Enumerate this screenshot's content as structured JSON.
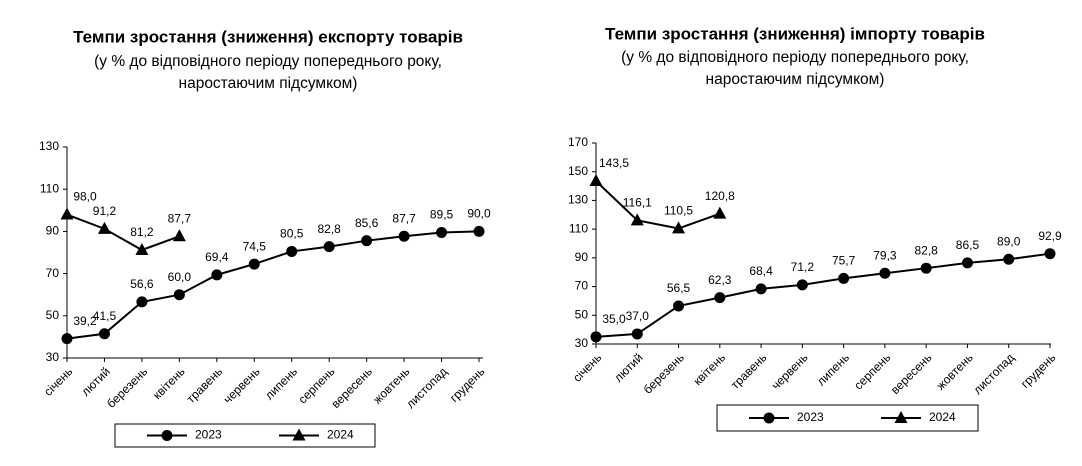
{
  "chart_data": [
    {
      "type": "line",
      "title": "Темпи зростання (зниження) експорту товарів",
      "subtitle": [
        "(у % до відповідного періоду попереднього року,",
        "наростаючим підсумком)"
      ],
      "categories": [
        "січень",
        "лютий",
        "березень",
        "квітень",
        "травень",
        "червень",
        "липень",
        "серпень",
        "вересень",
        "жовтень",
        "листопад",
        "грудень"
      ],
      "series": [
        {
          "name": "2023",
          "color": "#000000",
          "marker": "circle",
          "values": [
            39.2,
            41.5,
            56.6,
            60.0,
            69.4,
            74.5,
            80.5,
            82.8,
            85.6,
            87.7,
            89.5,
            90.0
          ],
          "value_labels": [
            "39,2",
            "41,5",
            "56,6",
            "60,0",
            "69,4",
            "74,5",
            "80,5",
            "82,8",
            "85,6",
            "87,7",
            "89,5",
            "90,0"
          ]
        },
        {
          "name": "2024",
          "color": "#000000",
          "marker": "triangle",
          "values": [
            98.0,
            91.2,
            81.2,
            87.7,
            null,
            null,
            null,
            null,
            null,
            null,
            null,
            null
          ],
          "value_labels": [
            "98,0",
            "91,2",
            "81,2",
            "87,7",
            null,
            null,
            null,
            null,
            null,
            null,
            null,
            null
          ]
        }
      ],
      "ylim": [
        30,
        130
      ],
      "yticks": [
        30,
        50,
        70,
        90,
        110,
        130
      ],
      "legend": "bottom"
    },
    {
      "type": "line",
      "title": "Темпи зростання (зниження) імпорту товарів",
      "subtitle": [
        "(у % до відповідного періоду попереднього року,",
        "наростаючим підсумком)"
      ],
      "categories": [
        "січень",
        "лютий",
        "березень",
        "квітень",
        "травень",
        "червень",
        "липень",
        "серпень",
        "вересень",
        "жовтень",
        "листопад",
        "грудень"
      ],
      "series": [
        {
          "name": "2023",
          "color": "#000000",
          "marker": "circle",
          "values": [
            35.0,
            37.0,
            56.5,
            62.3,
            68.4,
            71.2,
            75.7,
            79.3,
            82.8,
            86.5,
            89.0,
            92.9
          ],
          "value_labels": [
            "35,0",
            "37,0",
            "56,5",
            "62,3",
            "68,4",
            "71,2",
            "75,7",
            "79,3",
            "82,8",
            "86,5",
            "89,0",
            "92,9"
          ]
        },
        {
          "name": "2024",
          "color": "#000000",
          "marker": "triangle",
          "values": [
            143.5,
            116.1,
            110.5,
            120.8,
            null,
            null,
            null,
            null,
            null,
            null,
            null,
            null
          ],
          "value_labels": [
            "143,5",
            "116,1",
            "110,5",
            "120,8",
            null,
            null,
            null,
            null,
            null,
            null,
            null,
            null
          ]
        }
      ],
      "ylim": [
        30,
        170
      ],
      "yticks": [
        30,
        50,
        70,
        90,
        110,
        130,
        150,
        170
      ],
      "legend": "bottom"
    }
  ]
}
